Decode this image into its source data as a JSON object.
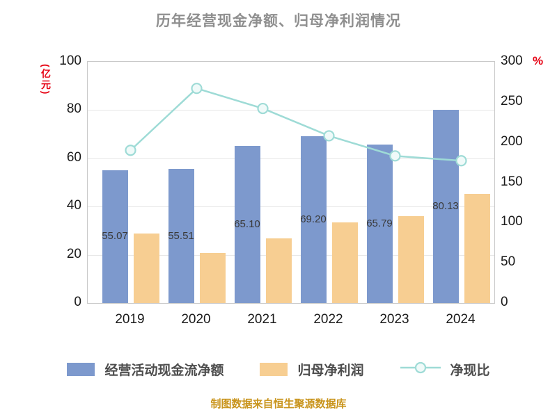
{
  "title": "历年经营现金净额、归母净利润情况",
  "footer": "制图数据来自恒生聚源数据库",
  "colors": {
    "title": "#8f8f8f",
    "axis_red": "#e60012",
    "grid": "#e7e7e7",
    "frame": "#c9c9c9",
    "tick_text": "#1a1a1a",
    "footer": "#c9941c"
  },
  "chart_data": {
    "type": "bar+line combo",
    "title": "历年经营现金净额、归母净利润情况",
    "categories": [
      "2019",
      "2020",
      "2021",
      "2022",
      "2023",
      "2024"
    ],
    "series": [
      {
        "name": "经营活动现金流净额",
        "type": "bar",
        "axis": "left",
        "color": "#7d99cd",
        "values": [
          55.07,
          55.51,
          65.1,
          69.2,
          65.79,
          80.13
        ],
        "labels": [
          "55.07",
          "55.51",
          "65.10",
          "69.20",
          "65.79",
          "80.13"
        ]
      },
      {
        "name": "归母净利润",
        "type": "bar",
        "axis": "left",
        "color": "#f7ce92",
        "values": [
          28.9,
          20.8,
          26.9,
          33.3,
          36.0,
          45.3
        ]
      },
      {
        "name": "净现比",
        "type": "line",
        "axis": "right",
        "color": "#9edbd6",
        "marker_fill": "#f0faf9",
        "values": [
          190,
          267,
          242,
          208,
          183,
          177
        ]
      }
    ],
    "left_axis": {
      "label": "(亿元)",
      "min": 0,
      "max": 100,
      "ticks": [
        0,
        20,
        40,
        60,
        80,
        100
      ]
    },
    "right_axis": {
      "label": "%",
      "min": 0,
      "max": 300,
      "ticks": [
        0,
        50,
        100,
        150,
        200,
        250,
        300
      ]
    },
    "grid": "horizontal",
    "legend_position": "bottom"
  }
}
